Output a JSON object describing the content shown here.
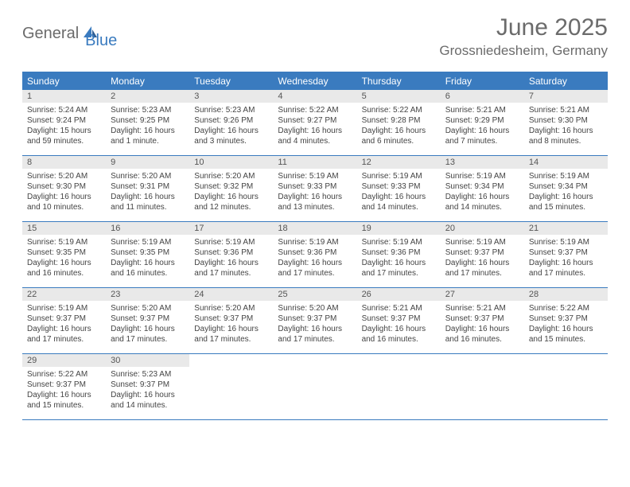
{
  "logo": {
    "general": "General",
    "blue": "Blue"
  },
  "title": "June 2025",
  "location": "Grossniedesheim, Germany",
  "colors": {
    "header_bg": "#3a7bbf",
    "header_text": "#ffffff",
    "daynum_bg": "#e9e9e9",
    "body_text": "#444444",
    "title_text": "#6b6b6b",
    "border": "#3a7bbf"
  },
  "typography": {
    "title_fontsize": 30,
    "location_fontsize": 17,
    "dayheader_fontsize": 12,
    "daynum_fontsize": 11,
    "body_fontsize": 10
  },
  "dayHeaders": [
    "Sunday",
    "Monday",
    "Tuesday",
    "Wednesday",
    "Thursday",
    "Friday",
    "Saturday"
  ],
  "weeks": [
    [
      {
        "n": "1",
        "sunrise": "Sunrise: 5:24 AM",
        "sunset": "Sunset: 9:24 PM",
        "daylight": "Daylight: 15 hours and 59 minutes."
      },
      {
        "n": "2",
        "sunrise": "Sunrise: 5:23 AM",
        "sunset": "Sunset: 9:25 PM",
        "daylight": "Daylight: 16 hours and 1 minute."
      },
      {
        "n": "3",
        "sunrise": "Sunrise: 5:23 AM",
        "sunset": "Sunset: 9:26 PM",
        "daylight": "Daylight: 16 hours and 3 minutes."
      },
      {
        "n": "4",
        "sunrise": "Sunrise: 5:22 AM",
        "sunset": "Sunset: 9:27 PM",
        "daylight": "Daylight: 16 hours and 4 minutes."
      },
      {
        "n": "5",
        "sunrise": "Sunrise: 5:22 AM",
        "sunset": "Sunset: 9:28 PM",
        "daylight": "Daylight: 16 hours and 6 minutes."
      },
      {
        "n": "6",
        "sunrise": "Sunrise: 5:21 AM",
        "sunset": "Sunset: 9:29 PM",
        "daylight": "Daylight: 16 hours and 7 minutes."
      },
      {
        "n": "7",
        "sunrise": "Sunrise: 5:21 AM",
        "sunset": "Sunset: 9:30 PM",
        "daylight": "Daylight: 16 hours and 8 minutes."
      }
    ],
    [
      {
        "n": "8",
        "sunrise": "Sunrise: 5:20 AM",
        "sunset": "Sunset: 9:30 PM",
        "daylight": "Daylight: 16 hours and 10 minutes."
      },
      {
        "n": "9",
        "sunrise": "Sunrise: 5:20 AM",
        "sunset": "Sunset: 9:31 PM",
        "daylight": "Daylight: 16 hours and 11 minutes."
      },
      {
        "n": "10",
        "sunrise": "Sunrise: 5:20 AM",
        "sunset": "Sunset: 9:32 PM",
        "daylight": "Daylight: 16 hours and 12 minutes."
      },
      {
        "n": "11",
        "sunrise": "Sunrise: 5:19 AM",
        "sunset": "Sunset: 9:33 PM",
        "daylight": "Daylight: 16 hours and 13 minutes."
      },
      {
        "n": "12",
        "sunrise": "Sunrise: 5:19 AM",
        "sunset": "Sunset: 9:33 PM",
        "daylight": "Daylight: 16 hours and 14 minutes."
      },
      {
        "n": "13",
        "sunrise": "Sunrise: 5:19 AM",
        "sunset": "Sunset: 9:34 PM",
        "daylight": "Daylight: 16 hours and 14 minutes."
      },
      {
        "n": "14",
        "sunrise": "Sunrise: 5:19 AM",
        "sunset": "Sunset: 9:34 PM",
        "daylight": "Daylight: 16 hours and 15 minutes."
      }
    ],
    [
      {
        "n": "15",
        "sunrise": "Sunrise: 5:19 AM",
        "sunset": "Sunset: 9:35 PM",
        "daylight": "Daylight: 16 hours and 16 minutes."
      },
      {
        "n": "16",
        "sunrise": "Sunrise: 5:19 AM",
        "sunset": "Sunset: 9:35 PM",
        "daylight": "Daylight: 16 hours and 16 minutes."
      },
      {
        "n": "17",
        "sunrise": "Sunrise: 5:19 AM",
        "sunset": "Sunset: 9:36 PM",
        "daylight": "Daylight: 16 hours and 17 minutes."
      },
      {
        "n": "18",
        "sunrise": "Sunrise: 5:19 AM",
        "sunset": "Sunset: 9:36 PM",
        "daylight": "Daylight: 16 hours and 17 minutes."
      },
      {
        "n": "19",
        "sunrise": "Sunrise: 5:19 AM",
        "sunset": "Sunset: 9:36 PM",
        "daylight": "Daylight: 16 hours and 17 minutes."
      },
      {
        "n": "20",
        "sunrise": "Sunrise: 5:19 AM",
        "sunset": "Sunset: 9:37 PM",
        "daylight": "Daylight: 16 hours and 17 minutes."
      },
      {
        "n": "21",
        "sunrise": "Sunrise: 5:19 AM",
        "sunset": "Sunset: 9:37 PM",
        "daylight": "Daylight: 16 hours and 17 minutes."
      }
    ],
    [
      {
        "n": "22",
        "sunrise": "Sunrise: 5:19 AM",
        "sunset": "Sunset: 9:37 PM",
        "daylight": "Daylight: 16 hours and 17 minutes."
      },
      {
        "n": "23",
        "sunrise": "Sunrise: 5:20 AM",
        "sunset": "Sunset: 9:37 PM",
        "daylight": "Daylight: 16 hours and 17 minutes."
      },
      {
        "n": "24",
        "sunrise": "Sunrise: 5:20 AM",
        "sunset": "Sunset: 9:37 PM",
        "daylight": "Daylight: 16 hours and 17 minutes."
      },
      {
        "n": "25",
        "sunrise": "Sunrise: 5:20 AM",
        "sunset": "Sunset: 9:37 PM",
        "daylight": "Daylight: 16 hours and 17 minutes."
      },
      {
        "n": "26",
        "sunrise": "Sunrise: 5:21 AM",
        "sunset": "Sunset: 9:37 PM",
        "daylight": "Daylight: 16 hours and 16 minutes."
      },
      {
        "n": "27",
        "sunrise": "Sunrise: 5:21 AM",
        "sunset": "Sunset: 9:37 PM",
        "daylight": "Daylight: 16 hours and 16 minutes."
      },
      {
        "n": "28",
        "sunrise": "Sunrise: 5:22 AM",
        "sunset": "Sunset: 9:37 PM",
        "daylight": "Daylight: 16 hours and 15 minutes."
      }
    ],
    [
      {
        "n": "29",
        "sunrise": "Sunrise: 5:22 AM",
        "sunset": "Sunset: 9:37 PM",
        "daylight": "Daylight: 16 hours and 15 minutes."
      },
      {
        "n": "30",
        "sunrise": "Sunrise: 5:23 AM",
        "sunset": "Sunset: 9:37 PM",
        "daylight": "Daylight: 16 hours and 14 minutes."
      },
      null,
      null,
      null,
      null,
      null
    ]
  ]
}
